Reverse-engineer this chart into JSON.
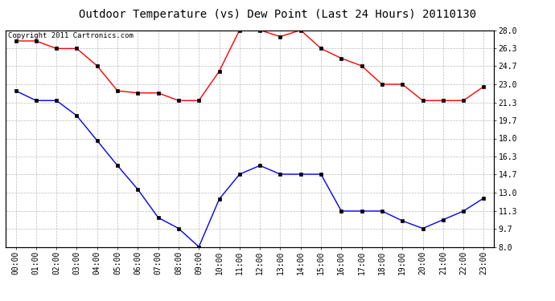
{
  "title": "Outdoor Temperature (vs) Dew Point (Last 24 Hours) 20110130",
  "copyright_text": "Copyright 2011 Cartronics.com",
  "x_labels": [
    "00:00",
    "01:00",
    "02:00",
    "03:00",
    "04:00",
    "05:00",
    "06:00",
    "07:00",
    "08:00",
    "09:00",
    "10:00",
    "11:00",
    "12:00",
    "13:00",
    "14:00",
    "15:00",
    "16:00",
    "17:00",
    "18:00",
    "19:00",
    "20:00",
    "21:00",
    "22:00",
    "23:00"
  ],
  "temp_data": [
    27.0,
    27.0,
    26.3,
    26.3,
    24.7,
    22.4,
    22.2,
    22.2,
    21.5,
    21.5,
    24.2,
    28.0,
    28.0,
    27.4,
    28.0,
    26.3,
    25.4,
    24.7,
    23.0,
    23.0,
    21.5,
    21.5,
    21.5,
    22.8
  ],
  "dew_data": [
    22.4,
    21.5,
    21.5,
    20.1,
    17.8,
    15.5,
    13.3,
    10.7,
    9.7,
    8.0,
    12.4,
    14.7,
    15.5,
    14.7,
    14.7,
    14.7,
    11.3,
    11.3,
    11.3,
    10.4,
    9.7,
    10.5,
    11.3,
    12.5
  ],
  "temp_color": "#ff0000",
  "dew_color": "#0000ff",
  "background_color": "#ffffff",
  "plot_bg_color": "#ffffff",
  "grid_color": "#aaaaaa",
  "ylim": [
    8.0,
    28.0
  ],
  "yticks": [
    8.0,
    9.7,
    11.3,
    13.0,
    14.7,
    16.3,
    18.0,
    19.7,
    21.3,
    23.0,
    24.7,
    26.3,
    28.0
  ],
  "title_fontsize": 10,
  "copyright_fontsize": 6.5,
  "tick_fontsize": 7,
  "marker": "s",
  "marker_size": 2.5,
  "line_width": 1.0
}
